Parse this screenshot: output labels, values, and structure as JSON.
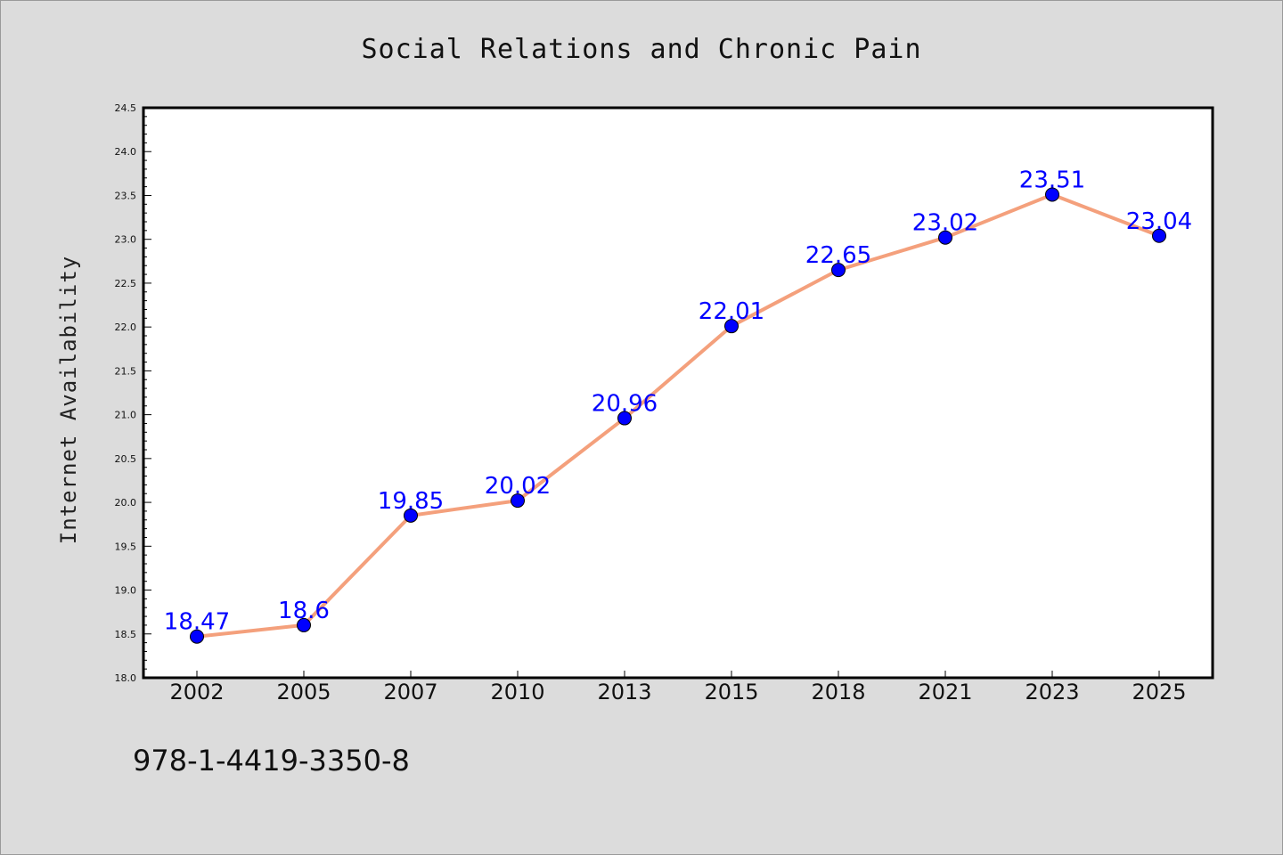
{
  "chart_data": {
    "type": "line",
    "title": "Social Relations and Chronic Pain",
    "xlabel": "",
    "ylabel": "Internet Availability",
    "categories": [
      "2002",
      "2005",
      "2007",
      "2010",
      "2013",
      "2015",
      "2018",
      "2021",
      "2023",
      "2025"
    ],
    "series": [
      {
        "values": [
          18.47,
          18.6,
          19.85,
          20.02,
          20.96,
          22.01,
          22.65,
          23.02,
          23.51,
          23.04
        ],
        "data_labels": [
          "18.47",
          "18.6",
          "19.85",
          "20.02",
          "20.96",
          "22.01",
          "22.65",
          "23.02",
          "23.51",
          "23.04"
        ],
        "line_color": "#f4a07c",
        "marker_color": "#0000ff"
      }
    ],
    "ylim": [
      18.0,
      24.5
    ],
    "yticks": [
      "18.0",
      "18.5",
      "19.0",
      "19.5",
      "20.0",
      "20.5",
      "21.0",
      "21.5",
      "22.0",
      "22.5",
      "23.0",
      "23.5",
      "24.0",
      "24.5"
    ],
    "grid": false,
    "legend": "none"
  },
  "footer": {
    "isbn": "978-1-4419-3350-8"
  },
  "colors": {
    "background": "#dcdcdc",
    "plot_background": "#ffffff",
    "line": "#f4a07c",
    "marker": "#0000ff",
    "data_label": "#0000ff"
  }
}
